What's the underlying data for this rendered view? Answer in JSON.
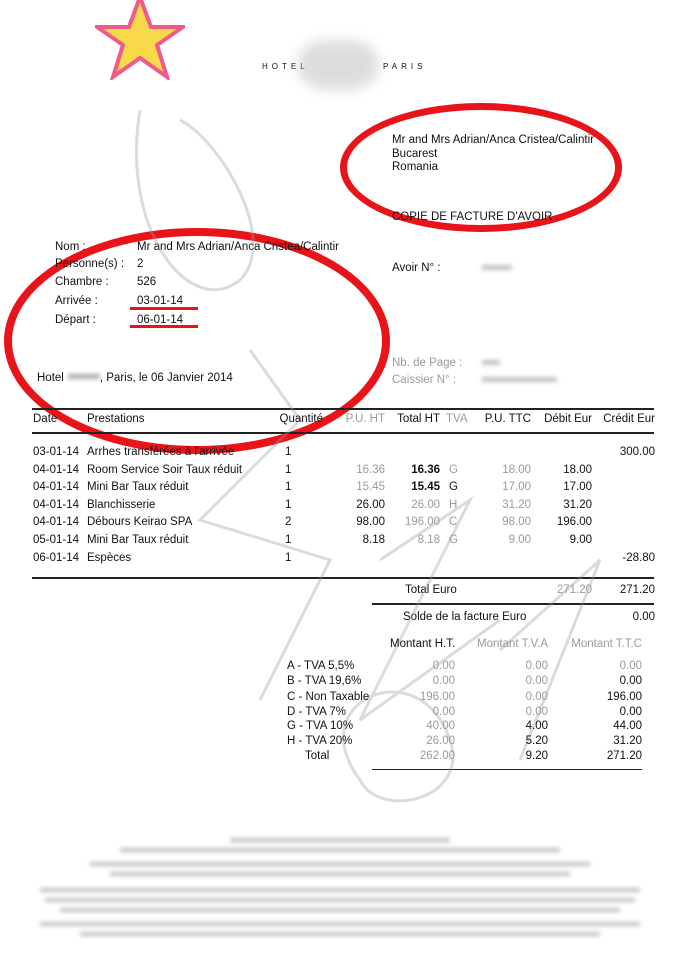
{
  "header": {
    "brand_left": "HOTEL",
    "brand_right": "PARIS"
  },
  "recipient": {
    "name": "Mr and Mrs Adrian/Anca Cristea/Calintir",
    "city": "Bucarest",
    "country": "Romania"
  },
  "doc_title": "COPIE DE FACTURE  D'AVOIR .",
  "guest": {
    "nom_label": "Nom :",
    "nom": "Mr and Mrs Adrian/Anca Cristea/Calintir",
    "personnes_label": "Personne(s) :",
    "personnes": "2",
    "chambre_label": "Chambre :",
    "chambre": "526",
    "arrivee_label": "Arrivée :",
    "arrivee": "03-01-14",
    "depart_label": "Départ :",
    "depart": "06-01-14"
  },
  "avoir_label": "Avoir N° :",
  "page_label": "Nb. de Page :",
  "caissier_label": "Caissier N° :",
  "place_date": {
    "hotel": "Hotel",
    "rest": ", Paris, le 06 Janvier 2014"
  },
  "table": {
    "headers": [
      "Date",
      "Prestations",
      "Quantité",
      "P.U. HT",
      "Total HT",
      "TVA",
      "P.U. TTC",
      "Débit Eur",
      "Crédit Eur"
    ],
    "rows": [
      [
        "03-01-14",
        "Arrhes  transférées à l'arrivée",
        "1",
        "",
        "",
        "",
        "",
        "",
        "300.00"
      ],
      [
        "04-01-14",
        "Room Service Soir Taux réduit",
        "1",
        "16.36",
        "16.36",
        "G",
        "18.00",
        "18.00",
        ""
      ],
      [
        "04-01-14",
        "Mini Bar Taux réduit",
        "1",
        "15.45",
        "15.45",
        "G",
        "17.00",
        "17.00",
        ""
      ],
      [
        "04-01-14",
        "Blanchisserie",
        "1",
        "26.00",
        "26.00",
        "H",
        "31.20",
        "31.20",
        ""
      ],
      [
        "04-01-14",
        "Débours Keirao SPA",
        "2",
        "98.00",
        "196.00",
        "C",
        "98.00",
        "196.00",
        ""
      ],
      [
        "05-01-14",
        "Mini Bar Taux réduit",
        "1",
        "8.18",
        "8.18",
        "G",
        "9.00",
        "9.00",
        ""
      ],
      [
        "06-01-14",
        "Espèces",
        "1",
        "",
        "",
        "",
        "",
        "",
        "-28.80"
      ]
    ]
  },
  "total_euro": {
    "label": "Total Euro",
    "debit": "271.20",
    "credit": "271.20"
  },
  "solde": {
    "label": "Solde de la facture Euro",
    "value": "0.00"
  },
  "tax": {
    "headers": [
      "Montant H.T.",
      "Montant T.V.A",
      "Montant T.T.C"
    ],
    "rows": [
      [
        "A - TVA  5,5%",
        "0.00",
        "0.00",
        "0.00"
      ],
      [
        "B - TVA  19,6%",
        "0.00",
        "0.00",
        "0.00"
      ],
      [
        "C - Non Taxable",
        "196.00",
        "0.00",
        "196.00"
      ],
      [
        "D - TVA   7%",
        "0.00",
        "0.00",
        "0.00"
      ],
      [
        "G - TVA  10%",
        "40.00",
        "4.00",
        "44.00"
      ],
      [
        "H - TVA  20%",
        "26.00",
        "5.20",
        "31.20"
      ]
    ],
    "total": [
      "Total",
      "262.00",
      "9.20",
      "271.20"
    ]
  }
}
